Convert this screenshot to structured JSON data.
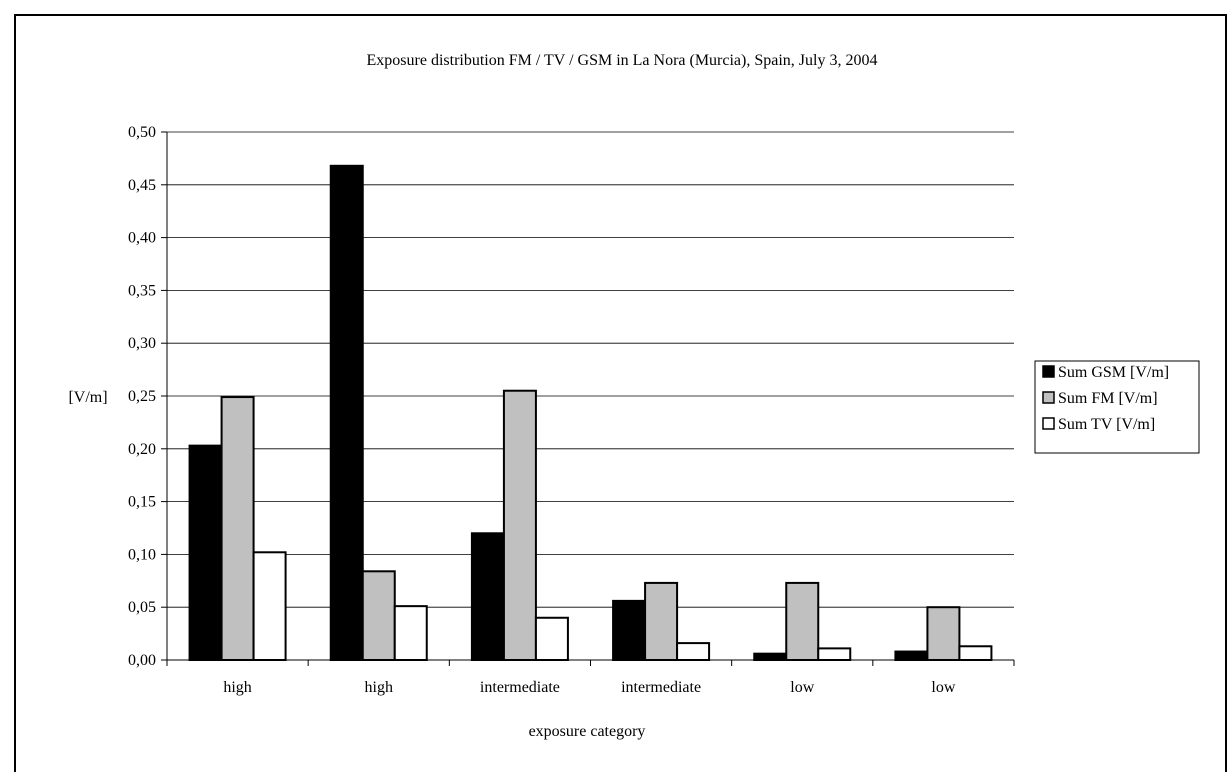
{
  "chart_data": {
    "type": "bar",
    "title": "Exposure distribution FM / TV / GSM in La Nora (Murcia), Spain, July 3, 2004",
    "xlabel": "exposure category",
    "ylabel": "[V/m]",
    "categories": [
      "high",
      "high",
      "intermediate",
      "intermediate",
      "low",
      "low"
    ],
    "ylim": [
      0,
      0.5
    ],
    "yticks": [
      "0,00",
      "0,05",
      "0,10",
      "0,15",
      "0,20",
      "0,25",
      "0,30",
      "0,35",
      "0,40",
      "0,45",
      "0,50"
    ],
    "grid": true,
    "legend_position": "right",
    "series": [
      {
        "name": "Sum GSM [V/m]",
        "color": "#000000",
        "values": [
          0.203,
          0.468,
          0.12,
          0.056,
          0.006,
          0.008
        ]
      },
      {
        "name": "Sum FM [V/m]",
        "color": "#c0c0c0",
        "values": [
          0.249,
          0.084,
          0.255,
          0.073,
          0.073,
          0.05
        ]
      },
      {
        "name": "Sum TV [V/m]",
        "color": "#ffffff",
        "values": [
          0.102,
          0.051,
          0.04,
          0.016,
          0.011,
          0.013
        ]
      }
    ]
  }
}
